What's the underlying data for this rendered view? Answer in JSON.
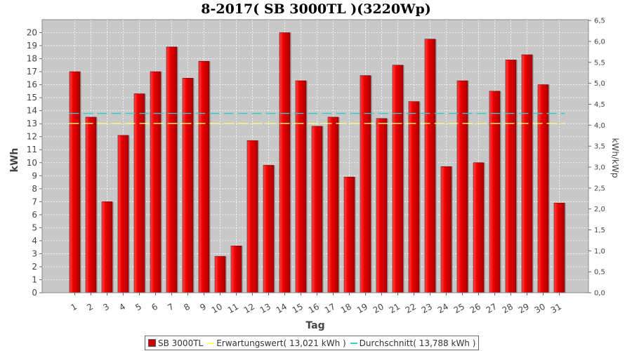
{
  "chart_data": {
    "type": "bar",
    "title": "8-2017( SB 3000TL )(3220Wp)",
    "xlabel": "Tag",
    "ylabel": "kWh",
    "y2label": "kWh/kWp",
    "categories": [
      "1",
      "2",
      "3",
      "4",
      "5",
      "6",
      "7",
      "8",
      "9",
      "10",
      "11",
      "12",
      "13",
      "14",
      "15",
      "16",
      "17",
      "18",
      "19",
      "20",
      "21",
      "22",
      "23",
      "24",
      "25",
      "26",
      "27",
      "28",
      "29",
      "30",
      "31"
    ],
    "series": [
      {
        "name": "SB 3000TL",
        "type": "bar",
        "color": "#e00000",
        "values": [
          17.0,
          13.5,
          7.0,
          12.1,
          15.3,
          17.0,
          18.9,
          16.5,
          17.8,
          2.8,
          3.6,
          11.7,
          9.8,
          20.0,
          16.3,
          12.8,
          13.5,
          8.9,
          16.7,
          13.4,
          17.5,
          14.7,
          19.5,
          9.7,
          16.3,
          10.0,
          15.5,
          17.9,
          18.3,
          16.0,
          6.9
        ]
      }
    ],
    "reference_lines": [
      {
        "name": "Erwartungswert",
        "label": "Erwartungswert( 13,021 kWh )",
        "value": 13.021,
        "color": "#ffff66"
      },
      {
        "name": "Durchschnitt",
        "label": "Durchschnitt( 13,788 kWh )",
        "value": 13.788,
        "color": "#33cccc"
      }
    ],
    "ylim": [
      0,
      21
    ],
    "yticks": [
      0,
      1,
      2,
      3,
      4,
      5,
      6,
      7,
      8,
      9,
      10,
      11,
      12,
      13,
      14,
      15,
      16,
      17,
      18,
      19,
      20
    ],
    "y2lim": [
      0,
      6.52
    ],
    "y2ticks": [
      "0,0",
      "0,5",
      "1,0",
      "1,5",
      "2,0",
      "2,5",
      "3,0",
      "3,5",
      "4,0",
      "4,5",
      "5,0",
      "5,5",
      "6,0",
      "6,5"
    ],
    "grid": true,
    "legend_position": "bottom",
    "plot_background": "#c8c8c8"
  }
}
